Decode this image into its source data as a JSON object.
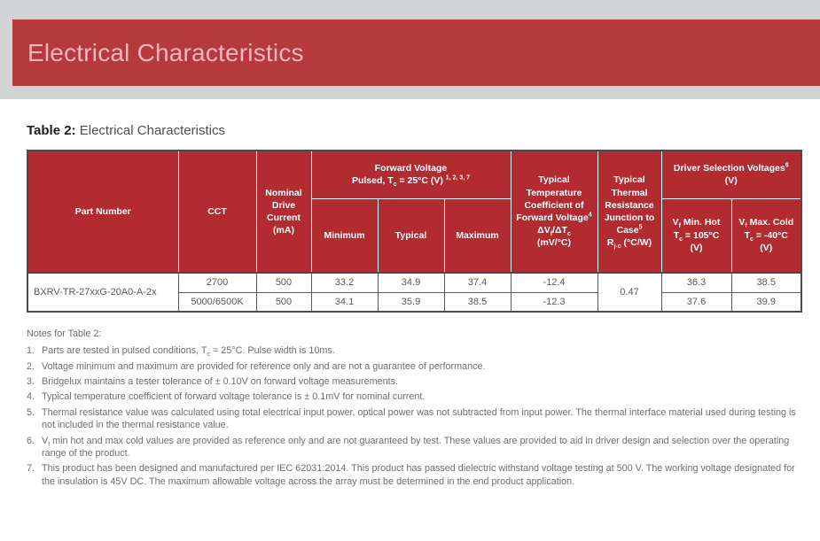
{
  "banner": {
    "title": "Electrical Characteristics"
  },
  "caption": {
    "bold": "Table 2:",
    "rest": " Electrical Characteristics"
  },
  "colors": {
    "top_band": "#d2d3d4",
    "banner_bg": "#b5393d",
    "banner_text": "#f2b6bd",
    "header_bg": "#b12b31",
    "border_dark": "#4a4a4c",
    "body_text": "#58595b",
    "notes_text": "#6d6e71"
  },
  "table": {
    "headers": {
      "part_number": "Part Number",
      "cct": "CCT",
      "minimum": "Minimum",
      "typical": "Typical",
      "maximum": "Maximum",
      "nominal_drive": [
        {
          "t": "txt",
          "v": "Nominal Drive Current (mA)"
        }
      ],
      "forward_voltage_group": [
        {
          "t": "txt",
          "v": "Forward Voltage"
        },
        {
          "t": "br"
        },
        {
          "t": "txt",
          "v": "Pulsed, T"
        },
        {
          "t": "sub",
          "v": "c"
        },
        {
          "t": "txt",
          "v": " = 25°C (V) "
        },
        {
          "t": "sup",
          "v": "1, 2, 3, 7"
        }
      ],
      "temp_coefficient": [
        {
          "t": "txt",
          "v": "Typical Temperature Coefficient of Forward Voltage"
        },
        {
          "t": "sup",
          "v": "4"
        },
        {
          "t": "br"
        },
        {
          "t": "txt",
          "v": "ΔV"
        },
        {
          "t": "sub",
          "v": "f"
        },
        {
          "t": "txt",
          "v": "/ΔT"
        },
        {
          "t": "sub",
          "v": "c"
        },
        {
          "t": "br"
        },
        {
          "t": "txt",
          "v": "(mV/°C)"
        }
      ],
      "thermal_resistance": [
        {
          "t": "txt",
          "v": "Typical Thermal Resistance Junction to Case"
        },
        {
          "t": "sup",
          "v": "5"
        },
        {
          "t": "br"
        },
        {
          "t": "txt",
          "v": "R"
        },
        {
          "t": "sub",
          "v": "j-c"
        },
        {
          "t": "txt",
          "v": " (°C/W)"
        }
      ],
      "driver_selection_group": [
        {
          "t": "txt",
          "v": "Driver Selection Voltages"
        },
        {
          "t": "sup",
          "v": "6"
        },
        {
          "t": "br"
        },
        {
          "t": "txt",
          "v": "(V)"
        }
      ],
      "vf_min_hot": [
        {
          "t": "txt",
          "v": "V"
        },
        {
          "t": "sub",
          "v": "f"
        },
        {
          "t": "txt",
          "v": " Min. Hot"
        },
        {
          "t": "br"
        },
        {
          "t": "txt",
          "v": "T"
        },
        {
          "t": "sub",
          "v": "c"
        },
        {
          "t": "txt",
          "v": " = 105°C"
        },
        {
          "t": "br"
        },
        {
          "t": "txt",
          "v": "(V)"
        }
      ],
      "vf_max_cold": [
        {
          "t": "txt",
          "v": "V"
        },
        {
          "t": "sub",
          "v": "f"
        },
        {
          "t": "txt",
          "v": " Max. Cold"
        },
        {
          "t": "br"
        },
        {
          "t": "txt",
          "v": "T"
        },
        {
          "t": "sub",
          "v": "c"
        },
        {
          "t": "txt",
          "v": " = -40°C"
        },
        {
          "t": "br"
        },
        {
          "t": "txt",
          "v": "(V)"
        }
      ]
    },
    "part_number": "BXRV-TR-27xxG-20A0-A-2x",
    "thermal_resistance_value": "0.47",
    "rows": [
      {
        "cct": "2700",
        "drive_current": "500",
        "vf_min": "33.2",
        "vf_typ": "34.9",
        "vf_max": "37.4",
        "temp_coeff": "-12.4",
        "vf_min_hot": "36.3",
        "vf_max_cold": "38.5"
      },
      {
        "cct": "5000/6500K",
        "drive_current": "500",
        "vf_min": "34.1",
        "vf_typ": "35.9",
        "vf_max": "38.5",
        "temp_coeff": "-12.3",
        "vf_min_hot": "37.6",
        "vf_max_cold": "39.9"
      }
    ]
  },
  "notes": {
    "title": "Notes for Table 2:",
    "items": [
      {
        "num": "1.",
        "segs": [
          {
            "t": "txt",
            "v": "Parts are tested in pulsed conditions, T"
          },
          {
            "t": "sub",
            "v": "c"
          },
          {
            "t": "txt",
            "v": " = 25°C. Pulse width is 10ms."
          }
        ]
      },
      {
        "num": "2.",
        "segs": [
          {
            "t": "txt",
            "v": "Voltage minimum and maximum are provided for reference only and are not a guarantee of performance."
          }
        ]
      },
      {
        "num": "3.",
        "segs": [
          {
            "t": "txt",
            "v": "Bridgelux maintains a tester tolerance of ± 0.10V on forward voltage measurements."
          }
        ]
      },
      {
        "num": "4.",
        "segs": [
          {
            "t": "txt",
            "v": "Typical temperature coefficient of forward voltage tolerance is ± 0.1mV for nominal current."
          }
        ]
      },
      {
        "num": "5.",
        "segs": [
          {
            "t": "txt",
            "v": "Thermal resistance value was calculated using total electrical input power, optical power was not subtracted from input power. The thermal interface material used during testing is not included in the thermal resistance value."
          }
        ]
      },
      {
        "num": "6.",
        "segs": [
          {
            "t": "txt",
            "v": "V"
          },
          {
            "t": "sub",
            "v": "f"
          },
          {
            "t": "txt",
            "v": " min hot and max cold values are provided as reference only and are not guaranteed by test. These values are provided to aid in driver design and selection over the operating range of the product."
          }
        ]
      },
      {
        "num": "7.",
        "segs": [
          {
            "t": "txt",
            "v": "This product has been designed and manufactured per IEC 62031:2014. This product has passed dielectric withstand voltage testing at 500 V. The working voltage designated for the insulation is 45V DC. The maximum allowable voltage across the array must be determined in the end product application."
          }
        ]
      }
    ]
  }
}
